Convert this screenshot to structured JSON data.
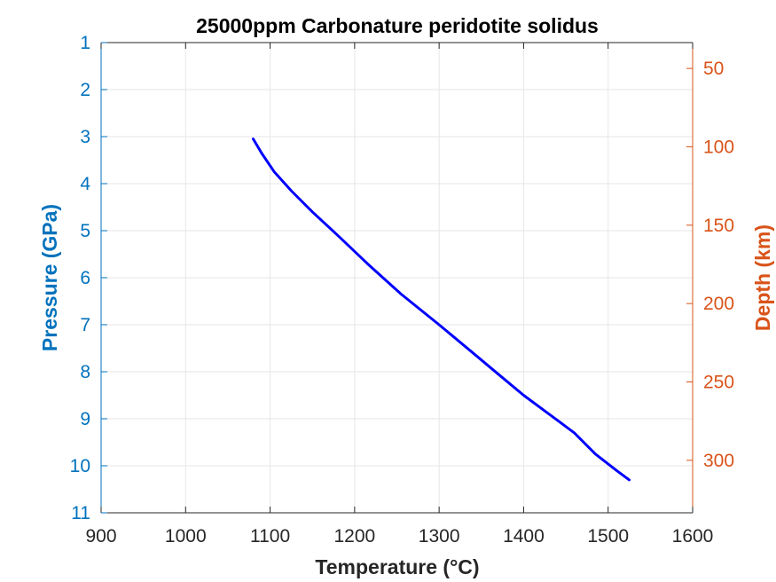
{
  "chart_data": {
    "type": "line",
    "title": "25000ppm Carbonature peridotite solidus",
    "xlabel": "Temperature (°C)",
    "ylabel": "Pressure (GPa)",
    "y2label": "Depth (km)",
    "xlim": [
      900,
      1600
    ],
    "ylim": [
      1,
      11
    ],
    "y_reversed": true,
    "y2lim": [
      33.5,
      333.5
    ],
    "y2_reversed": true,
    "x_ticks": [
      900,
      1000,
      1100,
      1200,
      1300,
      1400,
      1500,
      1600
    ],
    "y_ticks": [
      1,
      2,
      3,
      4,
      5,
      6,
      7,
      8,
      9,
      10,
      11
    ],
    "y2_ticks": [
      50,
      100,
      150,
      200,
      250,
      300
    ],
    "grid": true,
    "colors": {
      "series": "#0000ff",
      "left_axis": "#0072bd",
      "right_axis": "#d95319",
      "bottom_axis": "#262626",
      "grid": "#e6e6e6"
    },
    "series": [
      {
        "x": [
          1080,
          1090,
          1105,
          1125,
          1150,
          1180,
          1215,
          1255,
          1300,
          1340,
          1370,
          1400,
          1430,
          1460,
          1485,
          1510,
          1525
        ],
        "y": [
          3.05,
          3.35,
          3.75,
          4.15,
          4.6,
          5.1,
          5.7,
          6.35,
          7.0,
          7.6,
          8.05,
          8.5,
          8.9,
          9.3,
          9.75,
          10.1,
          10.3
        ]
      }
    ]
  }
}
